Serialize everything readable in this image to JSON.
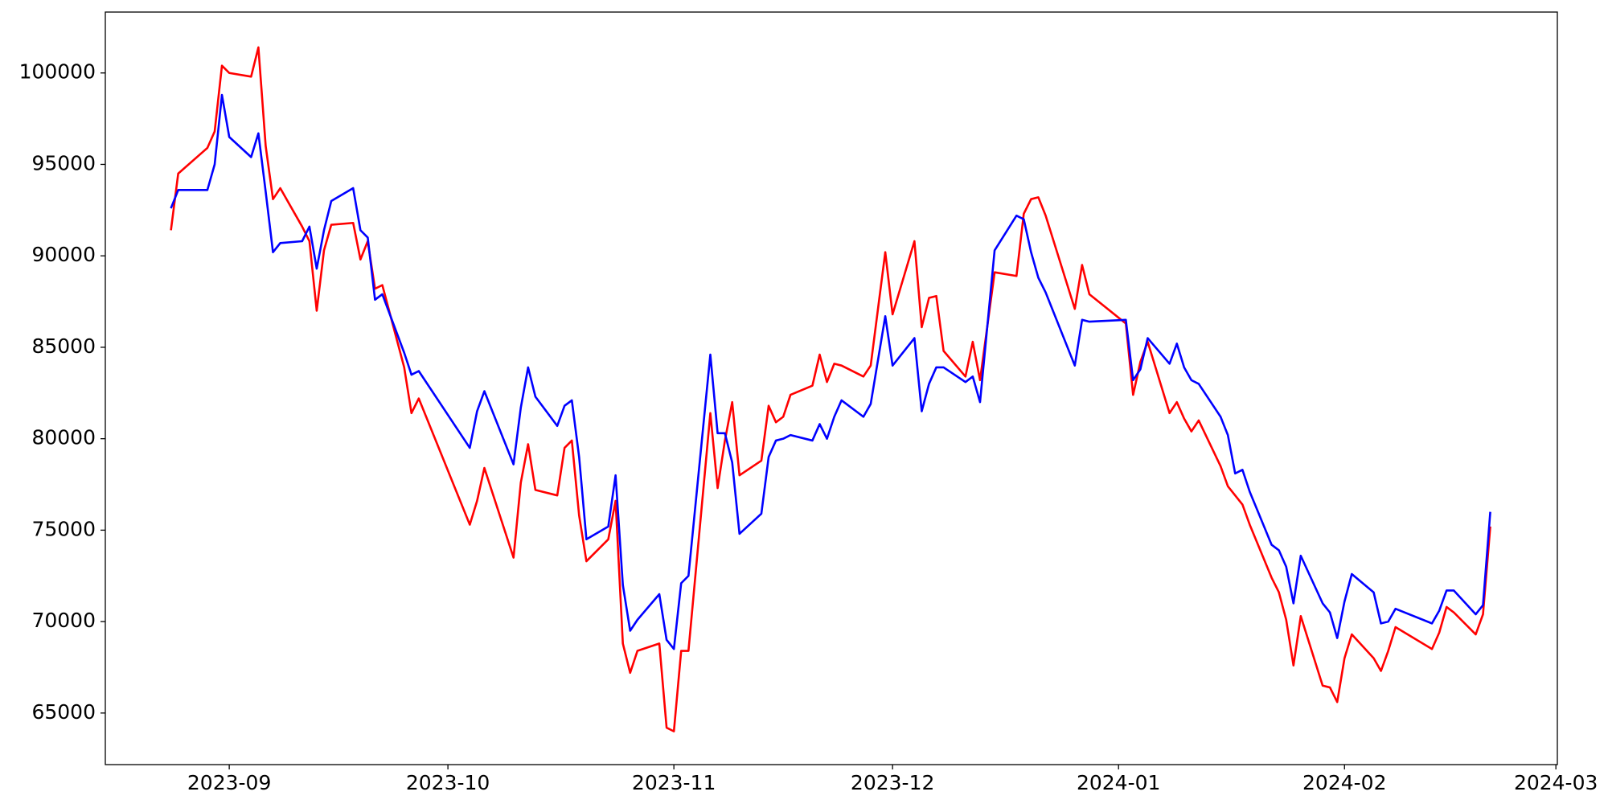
{
  "chart_data": {
    "type": "line",
    "x": [
      -8,
      -7,
      -3,
      -2,
      -1,
      0,
      3,
      4,
      5,
      6,
      7,
      10,
      11,
      12,
      13,
      14,
      17,
      18,
      19,
      20,
      21,
      24,
      25,
      26,
      33,
      34,
      35,
      39,
      40,
      41,
      42,
      45,
      46,
      47,
      48,
      49,
      52,
      53,
      54,
      55,
      56,
      59,
      60,
      61,
      62,
      63,
      66,
      67,
      68,
      69,
      70,
      73,
      74,
      75,
      76,
      77,
      80,
      81,
      82,
      83,
      84,
      87,
      88,
      90,
      91,
      94,
      95,
      96,
      97,
      98,
      101,
      102,
      103,
      105,
      108,
      109,
      110,
      111,
      112,
      116,
      117,
      118,
      123,
      124,
      125,
      126,
      129,
      130,
      131,
      132,
      133,
      136,
      137,
      138,
      139,
      140,
      143,
      144,
      145,
      146,
      147,
      150,
      151,
      152,
      153,
      154,
      157,
      158,
      159,
      160,
      165,
      166,
      167,
      168,
      171,
      172,
      173
    ],
    "series": [
      {
        "color": "#ff0000",
        "values": [
          91400,
          94500,
          95900,
          96800,
          100400,
          100000,
          99800,
          101400,
          96000,
          93100,
          93700,
          91600,
          90800,
          87000,
          90300,
          91700,
          91800,
          89800,
          90800,
          88200,
          88400,
          83900,
          81400,
          82200,
          75300,
          76600,
          78400,
          73500,
          77600,
          79700,
          77200,
          76900,
          79500,
          79900,
          75800,
          73300,
          74500,
          76600,
          68800,
          67200,
          68400,
          68800,
          64200,
          64000,
          68400,
          68400,
          81400,
          77300,
          79900,
          82000,
          78000,
          78800,
          81800,
          80900,
          81200,
          82400,
          82900,
          84600,
          83100,
          84100,
          84000,
          83400,
          84000,
          90200,
          86800,
          90800,
          86100,
          87700,
          87800,
          84800,
          83400,
          85300,
          83200,
          89100,
          88900,
          92300,
          93100,
          93200,
          92200,
          87100,
          89500,
          87900,
          86300,
          82400,
          84200,
          85300,
          81400,
          82000,
          81100,
          80400,
          81000,
          78500,
          77400,
          76900,
          76400,
          75300,
          72400,
          71600,
          70100,
          67600,
          70300,
          66500,
          66400,
          65600,
          68000,
          69300,
          68000,
          67300,
          68400,
          69700,
          68500,
          69400,
          70800,
          70500,
          69300,
          70400,
          75200
        ]
      },
      {
        "color": "#0000ff",
        "values": [
          92600,
          93600,
          93600,
          95000,
          98800,
          96500,
          95400,
          96700,
          93500,
          90200,
          90700,
          90800,
          91600,
          89300,
          91400,
          93000,
          93700,
          91400,
          91000,
          87600,
          87900,
          84700,
          83500,
          83700,
          79500,
          81500,
          82600,
          78600,
          81700,
          83900,
          82300,
          80700,
          81800,
          82100,
          79000,
          74500,
          75200,
          78000,
          72000,
          69500,
          70100,
          71500,
          69000,
          68500,
          72100,
          72500,
          84600,
          80300,
          80300,
          78700,
          74800,
          75900,
          79000,
          79900,
          80000,
          80200,
          79900,
          80800,
          80000,
          81200,
          82100,
          81200,
          81900,
          86700,
          84000,
          85500,
          81500,
          83000,
          83900,
          83900,
          83100,
          83400,
          82000,
          90300,
          92200,
          92000,
          90200,
          88800,
          88000,
          84000,
          86500,
          86400,
          86500,
          83200,
          83800,
          85500,
          84100,
          85200,
          83900,
          83200,
          83000,
          81200,
          80200,
          78100,
          78300,
          77100,
          74200,
          73900,
          73000,
          71000,
          73600,
          71000,
          70500,
          69100,
          71100,
          72600,
          71600,
          69900,
          70000,
          70700,
          69900,
          70600,
          71700,
          71700,
          70400,
          70900,
          76000
        ]
      }
    ],
    "xlim": [
      -17,
      182.2
    ],
    "xticks": [
      {
        "value": 0,
        "label": "2023-09"
      },
      {
        "value": 30,
        "label": "2023-10"
      },
      {
        "value": 61,
        "label": "2023-11"
      },
      {
        "value": 91,
        "label": "2023-12"
      },
      {
        "value": 122,
        "label": "2024-01"
      },
      {
        "value": 153,
        "label": "2024-02"
      },
      {
        "value": 182,
        "label": "2024-03"
      }
    ],
    "ylim": [
      62180,
      103330
    ],
    "yticks": [
      65000,
      70000,
      75000,
      80000,
      85000,
      90000,
      95000,
      100000
    ],
    "grid": false
  }
}
